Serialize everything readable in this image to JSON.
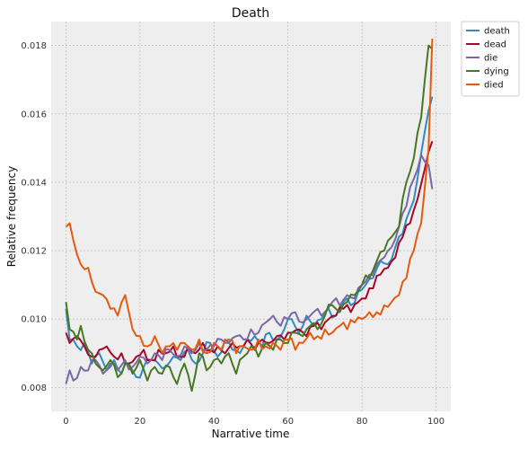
{
  "chart_data": {
    "type": "line",
    "title": "Death",
    "xlabel": "Narrative time",
    "ylabel": "Relative frequency",
    "xlim": [
      -4,
      104
    ],
    "ylim": [
      0.0073,
      0.0187
    ],
    "xticks": [
      0,
      20,
      40,
      60,
      80,
      100
    ],
    "yticks": [
      0.008,
      0.01,
      0.012,
      0.014,
      0.016,
      0.018
    ],
    "xtick_labels": [
      "0",
      "20",
      "40",
      "60",
      "80",
      "100"
    ],
    "ytick_labels": [
      "0.008",
      "0.010",
      "0.012",
      "0.014",
      "0.016",
      "0.018"
    ],
    "grid": true,
    "legend_position": "outside top-right",
    "background": "#eeeeee",
    "series": [
      {
        "name": "death",
        "color": "#348abd",
        "anchors": [
          [
            0,
            0.0103
          ],
          [
            1,
            0.0094
          ],
          [
            3,
            0.0092
          ],
          [
            5,
            0.0093
          ],
          [
            7,
            0.0087
          ],
          [
            9,
            0.009
          ],
          [
            11,
            0.0085
          ],
          [
            13,
            0.0088
          ],
          [
            15,
            0.0084
          ],
          [
            17,
            0.0087
          ],
          [
            19,
            0.0083
          ],
          [
            21,
            0.0086
          ],
          [
            23,
            0.0088
          ],
          [
            25,
            0.0087
          ],
          [
            27,
            0.0086
          ],
          [
            29,
            0.0089
          ],
          [
            31,
            0.0088
          ],
          [
            33,
            0.0091
          ],
          [
            35,
            0.0087
          ],
          [
            37,
            0.009
          ],
          [
            39,
            0.0093
          ],
          [
            41,
            0.0089
          ],
          [
            43,
            0.0094
          ],
          [
            45,
            0.0091
          ],
          [
            47,
            0.009
          ],
          [
            49,
            0.0094
          ],
          [
            51,
            0.0095
          ],
          [
            53,
            0.0092
          ],
          [
            55,
            0.0096
          ],
          [
            57,
            0.0094
          ],
          [
            59,
            0.0097
          ],
          [
            61,
            0.01
          ],
          [
            63,
            0.0096
          ],
          [
            65,
            0.0101
          ],
          [
            67,
            0.0098
          ],
          [
            69,
            0.01
          ],
          [
            71,
            0.0103
          ],
          [
            73,
            0.0101
          ],
          [
            75,
            0.0105
          ],
          [
            77,
            0.0104
          ],
          [
            79,
            0.0108
          ],
          [
            81,
            0.011
          ],
          [
            83,
            0.0112
          ],
          [
            85,
            0.0117
          ],
          [
            87,
            0.0116
          ],
          [
            89,
            0.0121
          ],
          [
            91,
            0.0125
          ],
          [
            93,
            0.0132
          ],
          [
            95,
            0.0141
          ],
          [
            97,
            0.0155
          ],
          [
            99,
            0.0165
          ]
        ]
      },
      {
        "name": "dead",
        "color": "#a60628",
        "anchors": [
          [
            0,
            0.0096
          ],
          [
            1,
            0.0093
          ],
          [
            3,
            0.0095
          ],
          [
            5,
            0.0092
          ],
          [
            7,
            0.0089
          ],
          [
            9,
            0.0091
          ],
          [
            11,
            0.0092
          ],
          [
            13,
            0.0089
          ],
          [
            15,
            0.009
          ],
          [
            17,
            0.0087
          ],
          [
            19,
            0.0089
          ],
          [
            21,
            0.0091
          ],
          [
            23,
            0.0088
          ],
          [
            25,
            0.0091
          ],
          [
            27,
            0.009
          ],
          [
            29,
            0.0092
          ],
          [
            31,
            0.0089
          ],
          [
            33,
            0.0092
          ],
          [
            35,
            0.009
          ],
          [
            37,
            0.0093
          ],
          [
            39,
            0.0091
          ],
          [
            41,
            0.0092
          ],
          [
            43,
            0.009
          ],
          [
            45,
            0.0093
          ],
          [
            47,
            0.0092
          ],
          [
            49,
            0.0094
          ],
          [
            51,
            0.0091
          ],
          [
            53,
            0.0094
          ],
          [
            55,
            0.0093
          ],
          [
            57,
            0.0095
          ],
          [
            59,
            0.0094
          ],
          [
            61,
            0.0096
          ],
          [
            63,
            0.0097
          ],
          [
            65,
            0.0095
          ],
          [
            67,
            0.0098
          ],
          [
            69,
            0.0097
          ],
          [
            71,
            0.01
          ],
          [
            73,
            0.0101
          ],
          [
            75,
            0.0103
          ],
          [
            77,
            0.0102
          ],
          [
            79,
            0.0105
          ],
          [
            81,
            0.0106
          ],
          [
            83,
            0.0109
          ],
          [
            85,
            0.0113
          ],
          [
            87,
            0.0115
          ],
          [
            89,
            0.0118
          ],
          [
            91,
            0.0124
          ],
          [
            93,
            0.0128
          ],
          [
            95,
            0.0135
          ],
          [
            97,
            0.0144
          ],
          [
            99,
            0.0152
          ]
        ]
      },
      {
        "name": "die",
        "color": "#7a68a6",
        "anchors": [
          [
            0,
            0.0081
          ],
          [
            1,
            0.0085
          ],
          [
            2,
            0.0082
          ],
          [
            4,
            0.0086
          ],
          [
            6,
            0.0085
          ],
          [
            8,
            0.0088
          ],
          [
            10,
            0.0084
          ],
          [
            12,
            0.0087
          ],
          [
            14,
            0.0085
          ],
          [
            16,
            0.0088
          ],
          [
            18,
            0.0086
          ],
          [
            20,
            0.0089
          ],
          [
            22,
            0.0087
          ],
          [
            24,
            0.009
          ],
          [
            26,
            0.0088
          ],
          [
            28,
            0.0091
          ],
          [
            30,
            0.0089
          ],
          [
            32,
            0.0092
          ],
          [
            34,
            0.009
          ],
          [
            36,
            0.0093
          ],
          [
            38,
            0.0091
          ],
          [
            40,
            0.0092
          ],
          [
            42,
            0.0094
          ],
          [
            44,
            0.0093
          ],
          [
            46,
            0.0095
          ],
          [
            48,
            0.0094
          ],
          [
            50,
            0.0097
          ],
          [
            52,
            0.0096
          ],
          [
            54,
            0.0099
          ],
          [
            56,
            0.0101
          ],
          [
            58,
            0.0098
          ],
          [
            60,
            0.01
          ],
          [
            62,
            0.0102
          ],
          [
            64,
            0.0099
          ],
          [
            66,
            0.0101
          ],
          [
            68,
            0.0103
          ],
          [
            70,
            0.0102
          ],
          [
            72,
            0.0105
          ],
          [
            74,
            0.0104
          ],
          [
            76,
            0.0107
          ],
          [
            78,
            0.0106
          ],
          [
            80,
            0.011
          ],
          [
            82,
            0.0113
          ],
          [
            84,
            0.0116
          ],
          [
            86,
            0.0118
          ],
          [
            88,
            0.0121
          ],
          [
            90,
            0.0127
          ],
          [
            92,
            0.0133
          ],
          [
            94,
            0.0141
          ],
          [
            96,
            0.0148
          ],
          [
            97,
            0.0146
          ],
          [
            98,
            0.0145
          ],
          [
            99,
            0.0138
          ]
        ]
      },
      {
        "name": "dying",
        "color": "#467821",
        "anchors": [
          [
            0,
            0.0105
          ],
          [
            1,
            0.0097
          ],
          [
            3,
            0.0094
          ],
          [
            4,
            0.0098
          ],
          [
            6,
            0.0091
          ],
          [
            8,
            0.0087
          ],
          [
            10,
            0.0085
          ],
          [
            12,
            0.0088
          ],
          [
            14,
            0.0083
          ],
          [
            16,
            0.0087
          ],
          [
            18,
            0.0084
          ],
          [
            20,
            0.0088
          ],
          [
            22,
            0.0082
          ],
          [
            24,
            0.0086
          ],
          [
            26,
            0.0084
          ],
          [
            28,
            0.0086
          ],
          [
            30,
            0.0081
          ],
          [
            32,
            0.0087
          ],
          [
            34,
            0.0079
          ],
          [
            36,
            0.009
          ],
          [
            38,
            0.0085
          ],
          [
            40,
            0.0088
          ],
          [
            42,
            0.0087
          ],
          [
            44,
            0.009
          ],
          [
            46,
            0.0084
          ],
          [
            48,
            0.0089
          ],
          [
            50,
            0.0092
          ],
          [
            52,
            0.0089
          ],
          [
            54,
            0.0093
          ],
          [
            56,
            0.0091
          ],
          [
            58,
            0.0094
          ],
          [
            60,
            0.0093
          ],
          [
            62,
            0.0096
          ],
          [
            64,
            0.0095
          ],
          [
            66,
            0.0098
          ],
          [
            68,
            0.0097
          ],
          [
            70,
            0.0101
          ],
          [
            72,
            0.0104
          ],
          [
            74,
            0.0102
          ],
          [
            76,
            0.0105
          ],
          [
            78,
            0.0107
          ],
          [
            80,
            0.011
          ],
          [
            82,
            0.0112
          ],
          [
            84,
            0.0117
          ],
          [
            86,
            0.012
          ],
          [
            88,
            0.0124
          ],
          [
            90,
            0.0127
          ],
          [
            92,
            0.014
          ],
          [
            94,
            0.0147
          ],
          [
            96,
            0.0159
          ],
          [
            98,
            0.018
          ],
          [
            99,
            0.0179
          ]
        ]
      },
      {
        "name": "died",
        "color": "#e35a10",
        "anchors": [
          [
            0,
            0.0127
          ],
          [
            1,
            0.0128
          ],
          [
            2,
            0.0123
          ],
          [
            4,
            0.0116
          ],
          [
            6,
            0.0115
          ],
          [
            8,
            0.0108
          ],
          [
            10,
            0.0107
          ],
          [
            12,
            0.0103
          ],
          [
            14,
            0.0101
          ],
          [
            16,
            0.0107
          ],
          [
            18,
            0.0097
          ],
          [
            20,
            0.0095
          ],
          [
            22,
            0.0092
          ],
          [
            24,
            0.0095
          ],
          [
            26,
            0.009
          ],
          [
            28,
            0.0092
          ],
          [
            30,
            0.0091
          ],
          [
            32,
            0.0093
          ],
          [
            34,
            0.0091
          ],
          [
            36,
            0.0094
          ],
          [
            38,
            0.009
          ],
          [
            40,
            0.0093
          ],
          [
            42,
            0.0091
          ],
          [
            44,
            0.0094
          ],
          [
            46,
            0.009
          ],
          [
            48,
            0.0092
          ],
          [
            50,
            0.0091
          ],
          [
            52,
            0.0094
          ],
          [
            54,
            0.0092
          ],
          [
            56,
            0.0093
          ],
          [
            58,
            0.0091
          ],
          [
            60,
            0.0094
          ],
          [
            62,
            0.0091
          ],
          [
            64,
            0.0093
          ],
          [
            66,
            0.0096
          ],
          [
            68,
            0.0095
          ],
          [
            70,
            0.0097
          ],
          [
            72,
            0.0096
          ],
          [
            74,
            0.0098
          ],
          [
            76,
            0.0097
          ],
          [
            78,
            0.0099
          ],
          [
            80,
            0.01
          ],
          [
            82,
            0.0102
          ],
          [
            84,
            0.0102
          ],
          [
            86,
            0.0104
          ],
          [
            88,
            0.0105
          ],
          [
            90,
            0.0107
          ],
          [
            92,
            0.0112
          ],
          [
            94,
            0.012
          ],
          [
            96,
            0.0128
          ],
          [
            98,
            0.015
          ],
          [
            99,
            0.0182
          ]
        ]
      }
    ]
  }
}
